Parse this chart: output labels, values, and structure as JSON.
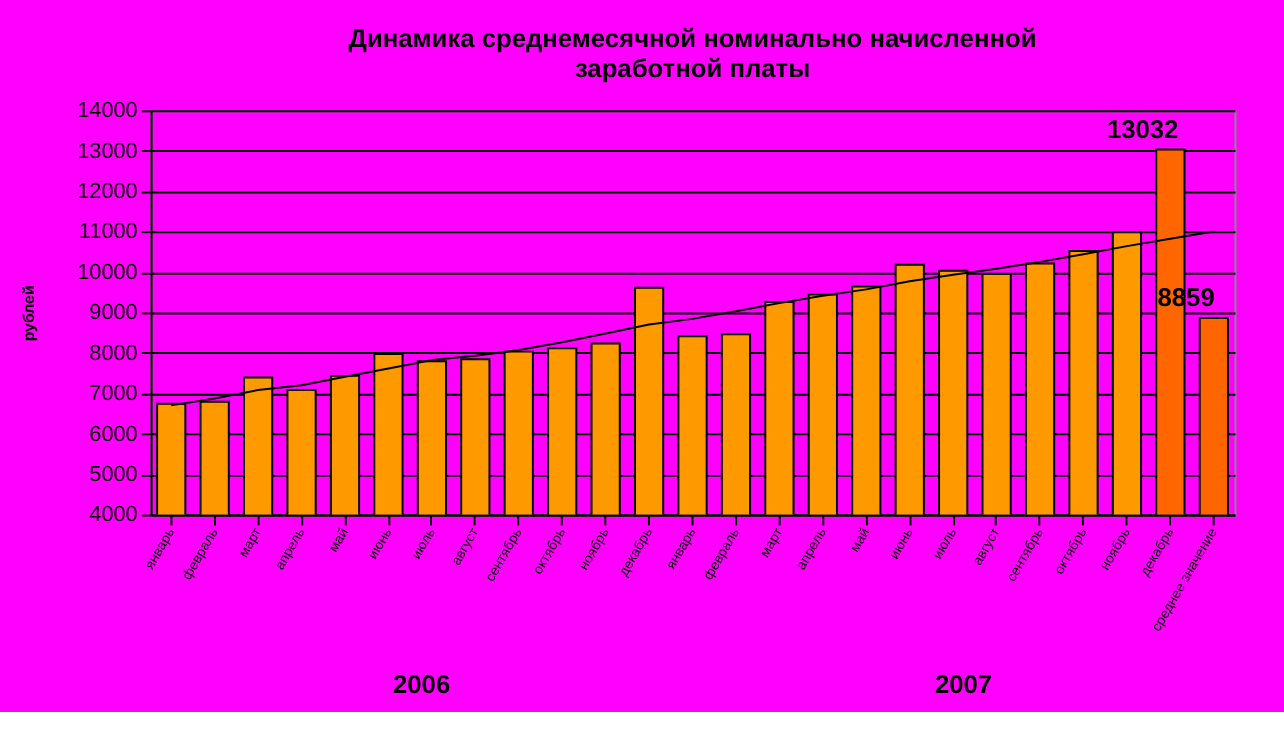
{
  "chart_data": {
    "type": "bar",
    "title": [
      "Динамика среднемесячной номинально начисленной",
      "заработной платы"
    ],
    "ylabel": "рублей",
    "categories": [
      "январь",
      "февраль",
      "март",
      "апрель",
      "май",
      "июнь",
      "июль",
      "август",
      "сентябрь",
      "октябрь",
      "ноябрь",
      "декабрь",
      "январь",
      "февраль",
      "март",
      "апрель",
      "май",
      "июнь",
      "июль",
      "август",
      "сентябрь",
      "октябрь",
      "ноябрь",
      "декабрь",
      "среднее значение"
    ],
    "series": [
      {
        "colors": [
          "#ff9900",
          "#ff9900",
          "#ff9900",
          "#ff9900",
          "#ff9900",
          "#ff9900",
          "#ff9900",
          "#ff9900",
          "#ff9900",
          "#ff9900",
          "#ff9900",
          "#ff9900",
          "#ff9900",
          "#ff9900",
          "#ff9900",
          "#ff9900",
          "#ff9900",
          "#ff9900",
          "#ff9900",
          "#ff9900",
          "#ff9900",
          "#ff9900",
          "#ff9900",
          "#ff6600",
          "#ff6600"
        ],
        "values": [
          6740,
          6790,
          7390,
          7080,
          7430,
          7970,
          7790,
          7840,
          8030,
          8110,
          8230,
          9610,
          8410,
          8460,
          9260,
          9440,
          9640,
          10180,
          10030,
          9950,
          10210,
          10520,
          10980,
          13032,
          8859
        ],
        "value_labels": [
          null,
          null,
          null,
          null,
          null,
          null,
          null,
          null,
          null,
          null,
          null,
          null,
          null,
          null,
          null,
          null,
          null,
          null,
          null,
          null,
          null,
          null,
          null,
          "13032",
          "8859"
        ]
      },
      {
        "type": "line",
        "color": "#000000",
        "values": [
          6700,
          6870,
          7080,
          7200,
          7410,
          7610,
          7820,
          7930,
          8070,
          8260,
          8480,
          8700,
          8840,
          9030,
          9230,
          9410,
          9570,
          9770,
          9930,
          10080,
          10250,
          10440,
          10640,
          10820,
          11000
        ]
      }
    ],
    "ylim": [
      4000,
      14000
    ],
    "yticks": [
      4000,
      5000,
      6000,
      7000,
      8000,
      9000,
      10000,
      11000,
      12000,
      13000,
      14000
    ],
    "grid": "y",
    "annotations": [
      "2006",
      "2007"
    ]
  }
}
